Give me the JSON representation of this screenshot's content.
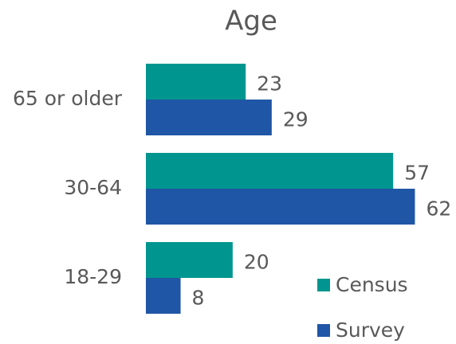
{
  "chart_data": {
    "type": "barh",
    "title": "Age",
    "categories": [
      "65 or older",
      "30-64",
      "18-29"
    ],
    "series": [
      {
        "name": "Census",
        "color": "#00968f",
        "values": [
          23,
          57,
          20
        ]
      },
      {
        "name": "Survey",
        "color": "#1f56a5",
        "values": [
          29,
          62,
          8
        ]
      }
    ],
    "xlim": [
      0,
      70
    ],
    "legend": "lower right"
  }
}
